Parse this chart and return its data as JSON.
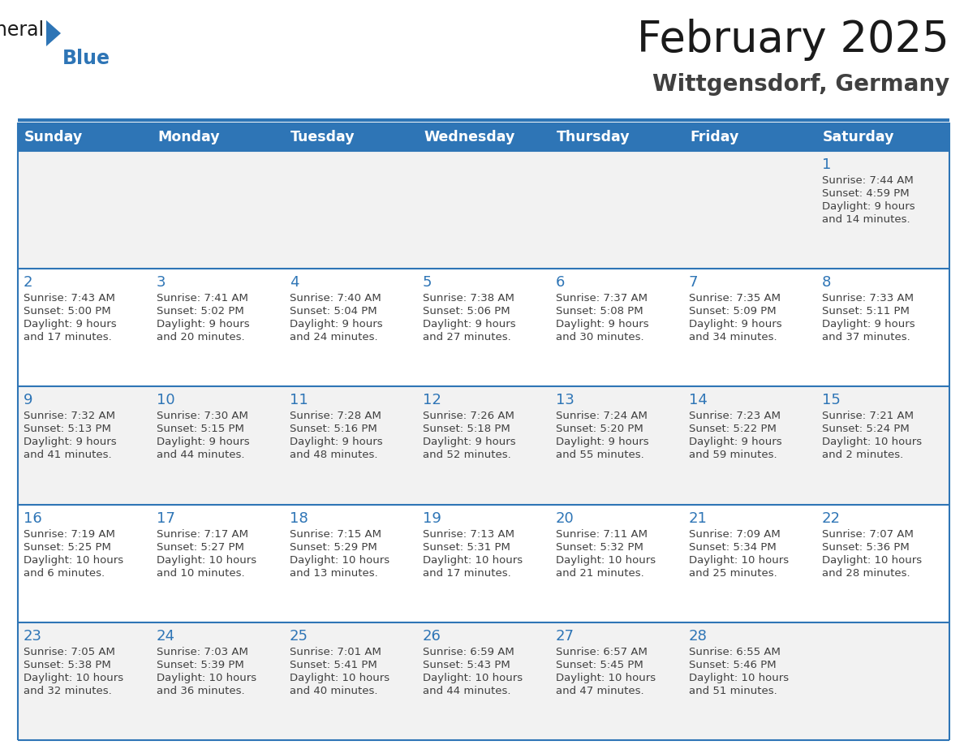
{
  "title": "February 2025",
  "subtitle": "Wittgensdorf, Germany",
  "header_bg": "#2E75B6",
  "header_text_color": "#FFFFFF",
  "cell_bg_odd": "#F2F2F2",
  "cell_bg_even": "#FFFFFF",
  "day_headers": [
    "Sunday",
    "Monday",
    "Tuesday",
    "Wednesday",
    "Thursday",
    "Friday",
    "Saturday"
  ],
  "title_color": "#1a1a1a",
  "subtitle_color": "#404040",
  "day_number_color": "#2E75B6",
  "cell_text_color": "#404040",
  "separator_color": "#2E75B6",
  "logo_general_color": "#1a1a1a",
  "logo_blue_color": "#2E75B6",
  "logo_triangle_color": "#2E75B6",
  "calendar_data": [
    [
      null,
      null,
      null,
      null,
      null,
      null,
      {
        "day": 1,
        "sunrise": "7:44 AM",
        "sunset": "4:59 PM",
        "daylight": "9 hours and 14 minutes."
      }
    ],
    [
      {
        "day": 2,
        "sunrise": "7:43 AM",
        "sunset": "5:00 PM",
        "daylight": "9 hours and 17 minutes."
      },
      {
        "day": 3,
        "sunrise": "7:41 AM",
        "sunset": "5:02 PM",
        "daylight": "9 hours and 20 minutes."
      },
      {
        "day": 4,
        "sunrise": "7:40 AM",
        "sunset": "5:04 PM",
        "daylight": "9 hours and 24 minutes."
      },
      {
        "day": 5,
        "sunrise": "7:38 AM",
        "sunset": "5:06 PM",
        "daylight": "9 hours and 27 minutes."
      },
      {
        "day": 6,
        "sunrise": "7:37 AM",
        "sunset": "5:08 PM",
        "daylight": "9 hours and 30 minutes."
      },
      {
        "day": 7,
        "sunrise": "7:35 AM",
        "sunset": "5:09 PM",
        "daylight": "9 hours and 34 minutes."
      },
      {
        "day": 8,
        "sunrise": "7:33 AM",
        "sunset": "5:11 PM",
        "daylight": "9 hours and 37 minutes."
      }
    ],
    [
      {
        "day": 9,
        "sunrise": "7:32 AM",
        "sunset": "5:13 PM",
        "daylight": "9 hours and 41 minutes."
      },
      {
        "day": 10,
        "sunrise": "7:30 AM",
        "sunset": "5:15 PM",
        "daylight": "9 hours and 44 minutes."
      },
      {
        "day": 11,
        "sunrise": "7:28 AM",
        "sunset": "5:16 PM",
        "daylight": "9 hours and 48 minutes."
      },
      {
        "day": 12,
        "sunrise": "7:26 AM",
        "sunset": "5:18 PM",
        "daylight": "9 hours and 52 minutes."
      },
      {
        "day": 13,
        "sunrise": "7:24 AM",
        "sunset": "5:20 PM",
        "daylight": "9 hours and 55 minutes."
      },
      {
        "day": 14,
        "sunrise": "7:23 AM",
        "sunset": "5:22 PM",
        "daylight": "9 hours and 59 minutes."
      },
      {
        "day": 15,
        "sunrise": "7:21 AM",
        "sunset": "5:24 PM",
        "daylight": "10 hours and 2 minutes."
      }
    ],
    [
      {
        "day": 16,
        "sunrise": "7:19 AM",
        "sunset": "5:25 PM",
        "daylight": "10 hours and 6 minutes."
      },
      {
        "day": 17,
        "sunrise": "7:17 AM",
        "sunset": "5:27 PM",
        "daylight": "10 hours and 10 minutes."
      },
      {
        "day": 18,
        "sunrise": "7:15 AM",
        "sunset": "5:29 PM",
        "daylight": "10 hours and 13 minutes."
      },
      {
        "day": 19,
        "sunrise": "7:13 AM",
        "sunset": "5:31 PM",
        "daylight": "10 hours and 17 minutes."
      },
      {
        "day": 20,
        "sunrise": "7:11 AM",
        "sunset": "5:32 PM",
        "daylight": "10 hours and 21 minutes."
      },
      {
        "day": 21,
        "sunrise": "7:09 AM",
        "sunset": "5:34 PM",
        "daylight": "10 hours and 25 minutes."
      },
      {
        "day": 22,
        "sunrise": "7:07 AM",
        "sunset": "5:36 PM",
        "daylight": "10 hours and 28 minutes."
      }
    ],
    [
      {
        "day": 23,
        "sunrise": "7:05 AM",
        "sunset": "5:38 PM",
        "daylight": "10 hours and 32 minutes."
      },
      {
        "day": 24,
        "sunrise": "7:03 AM",
        "sunset": "5:39 PM",
        "daylight": "10 hours and 36 minutes."
      },
      {
        "day": 25,
        "sunrise": "7:01 AM",
        "sunset": "5:41 PM",
        "daylight": "10 hours and 40 minutes."
      },
      {
        "day": 26,
        "sunrise": "6:59 AM",
        "sunset": "5:43 PM",
        "daylight": "10 hours and 44 minutes."
      },
      {
        "day": 27,
        "sunrise": "6:57 AM",
        "sunset": "5:45 PM",
        "daylight": "10 hours and 47 minutes."
      },
      {
        "day": 28,
        "sunrise": "6:55 AM",
        "sunset": "5:46 PM",
        "daylight": "10 hours and 51 minutes."
      },
      null
    ]
  ]
}
